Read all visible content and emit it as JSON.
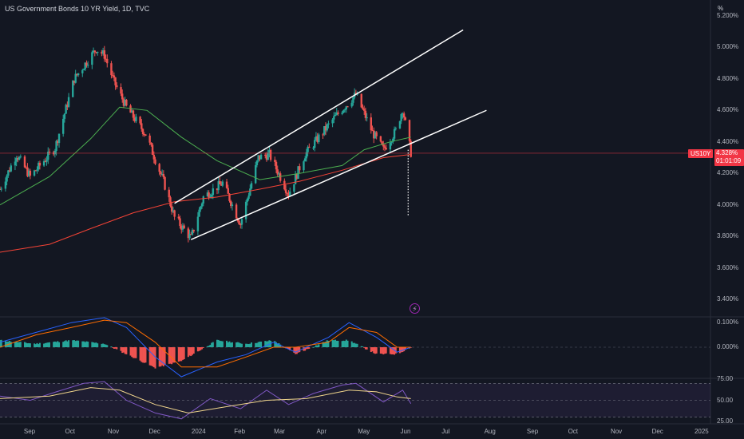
{
  "header": {
    "title": "US Government Bonds 10 YR Yield, 1D, TVC",
    "unit_label": "%"
  },
  "price_axis": {
    "labels": [
      "5.200%",
      "5.000%",
      "4.800%",
      "4.600%",
      "4.400%",
      "4.200%",
      "4.000%",
      "3.800%",
      "3.600%",
      "3.400%"
    ]
  },
  "macd_axis": {
    "labels": [
      "0.100%",
      "0.000%"
    ]
  },
  "rsi_axis": {
    "labels": [
      "75.00",
      "50.00",
      "25.00"
    ]
  },
  "time_axis": {
    "labels": [
      "Sep",
      "Oct",
      "Nov",
      "Dec",
      "2024",
      "Feb",
      "Mar",
      "Apr",
      "May",
      "Jun",
      "Jul",
      "Aug",
      "Sep",
      "Oct",
      "Nov",
      "Dec",
      "2025"
    ]
  },
  "last_price": {
    "ticker": "US10Y",
    "value": "4.328%",
    "countdown": "01:01:09"
  },
  "event_icon": "lightning-icon",
  "colors": {
    "background": "#131722",
    "up": "#26a69a",
    "down": "#ef5350",
    "ma_fast": "#4caf50",
    "ma_slow": "#f44336",
    "trendline": "#ffffff",
    "macd": "#2962ff",
    "signal": "#ff6d00",
    "rsi": "#7e57c2",
    "rsi_ma": "#f0d58c"
  },
  "chart_data": [
    {
      "type": "candlestick",
      "title": "US Government Bonds 10 YR Yield, 1D, TVC",
      "xlabel": "",
      "ylabel": "",
      "ylim": [
        3.3,
        5.3
      ],
      "x_range": [
        "2023-08-10",
        "2025-01-08"
      ],
      "x_ticks": [
        "Sep",
        "Oct",
        "Nov",
        "Dec",
        "2024",
        "Feb",
        "Mar",
        "Apr",
        "May",
        "Jun",
        "Jul",
        "Aug",
        "Sep",
        "Oct",
        "Nov",
        "Dec",
        "2025"
      ],
      "close_path": [
        [
          "2023-08-10",
          4.1
        ],
        [
          "2023-08-22",
          4.32
        ],
        [
          "2023-09-01",
          4.18
        ],
        [
          "2023-09-19",
          4.36
        ],
        [
          "2023-10-03",
          4.8
        ],
        [
          "2023-10-19",
          4.99
        ],
        [
          "2023-10-25",
          4.95
        ],
        [
          "2023-11-01",
          4.78
        ],
        [
          "2023-11-10",
          4.62
        ],
        [
          "2023-11-24",
          4.45
        ],
        [
          "2023-12-07",
          4.15
        ],
        [
          "2023-12-15",
          3.92
        ],
        [
          "2023-12-27",
          3.79
        ],
        [
          "2024-01-05",
          4.05
        ],
        [
          "2024-01-19",
          4.14
        ],
        [
          "2024-02-01",
          3.88
        ],
        [
          "2024-02-14",
          4.3
        ],
        [
          "2024-02-22",
          4.32
        ],
        [
          "2024-03-07",
          4.07
        ],
        [
          "2024-03-19",
          4.32
        ],
        [
          "2024-04-10",
          4.56
        ],
        [
          "2024-04-25",
          4.7
        ],
        [
          "2024-05-07",
          4.46
        ],
        [
          "2024-05-15",
          4.35
        ],
        [
          "2024-05-24",
          4.47
        ],
        [
          "2024-05-29",
          4.61
        ],
        [
          "2024-06-04",
          4.33
        ]
      ],
      "series": [
        {
          "name": "",
          "kind": "moving-average",
          "color": "#4caf50",
          "values": [
            [
              "2023-08-10",
              4.0
            ],
            [
              "2023-09-15",
              4.18
            ],
            [
              "2023-10-15",
              4.42
            ],
            [
              "2023-11-05",
              4.62
            ],
            [
              "2023-11-25",
              4.6
            ],
            [
              "2023-12-20",
              4.43
            ],
            [
              "2024-01-15",
              4.28
            ],
            [
              "2024-02-15",
              4.16
            ],
            [
              "2024-03-15",
              4.2
            ],
            [
              "2024-04-15",
              4.25
            ],
            [
              "2024-05-01",
              4.35
            ],
            [
              "2024-05-20",
              4.4
            ],
            [
              "2024-06-04",
              4.43
            ]
          ]
        },
        {
          "name": "",
          "kind": "moving-average",
          "color": "#f44336",
          "values": [
            [
              "2023-08-10",
              3.7
            ],
            [
              "2023-09-15",
              3.75
            ],
            [
              "2023-10-15",
              3.85
            ],
            [
              "2023-11-15",
              3.95
            ],
            [
              "2023-12-15",
              4.02
            ],
            [
              "2024-01-15",
              4.05
            ],
            [
              "2024-02-15",
              4.1
            ],
            [
              "2024-03-15",
              4.15
            ],
            [
              "2024-04-15",
              4.22
            ],
            [
              "2024-05-15",
              4.3
            ],
            [
              "2024-06-04",
              4.32
            ]
          ]
        }
      ],
      "trendlines": [
        {
          "from": [
            "2023-12-27",
            3.78
          ],
          "to": [
            "2024-07-29",
            4.6
          ]
        },
        {
          "from": [
            "2023-12-15",
            4.01
          ],
          "to": [
            "2024-07-12",
            5.11
          ]
        }
      ],
      "projection": {
        "from": [
          "2024-06-02",
          4.35
        ],
        "to": [
          "2024-06-02",
          3.93
        ],
        "style": "dotted"
      },
      "last_value": 4.328
    },
    {
      "type": "histogram",
      "title": "",
      "ylim": [
        -0.12,
        0.12
      ],
      "x_range": [
        "2023-08-10",
        "2024-06-04"
      ],
      "series": [
        {
          "name": "",
          "kind": "macd",
          "color": "#2962ff",
          "values": [
            [
              "2023-08-10",
              0.02
            ],
            [
              "2023-09-05",
              0.06
            ],
            [
              "2023-10-01",
              0.1
            ],
            [
              "2023-10-25",
              0.12
            ],
            [
              "2023-11-10",
              0.08
            ],
            [
              "2023-12-01",
              -0.04
            ],
            [
              "2023-12-20",
              -0.12
            ],
            [
              "2024-01-15",
              -0.06
            ],
            [
              "2024-02-05",
              -0.03
            ],
            [
              "2024-02-25",
              0.02
            ],
            [
              "2024-03-12",
              -0.02
            ],
            [
              "2024-04-05",
              0.04
            ],
            [
              "2024-04-20",
              0.1
            ],
            [
              "2024-05-10",
              0.04
            ],
            [
              "2024-05-25",
              -0.02
            ],
            [
              "2024-06-04",
              0.0
            ]
          ]
        },
        {
          "name": "",
          "kind": "signal",
          "color": "#ff6d00",
          "values": [
            [
              "2023-08-10",
              0.0
            ],
            [
              "2023-09-05",
              0.05
            ],
            [
              "2023-10-01",
              0.08
            ],
            [
              "2023-10-25",
              0.11
            ],
            [
              "2023-11-10",
              0.1
            ],
            [
              "2023-12-01",
              0.02
            ],
            [
              "2023-12-20",
              -0.08
            ],
            [
              "2024-01-15",
              -0.08
            ],
            [
              "2024-02-05",
              -0.04
            ],
            [
              "2024-02-25",
              0.0
            ],
            [
              "2024-03-12",
              0.0
            ],
            [
              "2024-04-05",
              0.02
            ],
            [
              "2024-04-20",
              0.08
            ],
            [
              "2024-05-10",
              0.06
            ],
            [
              "2024-05-25",
              0.0
            ],
            [
              "2024-06-04",
              0.0
            ]
          ]
        }
      ]
    },
    {
      "type": "line",
      "title": "",
      "ylim": [
        25,
        75
      ],
      "x_range": [
        "2023-08-10",
        "2024-06-04"
      ],
      "bands": [
        30,
        50,
        70
      ],
      "series": [
        {
          "name": "",
          "kind": "rsi",
          "color": "#7e57c2",
          "values": [
            [
              "2023-08-10",
              55
            ],
            [
              "2023-09-01",
              50
            ],
            [
              "2023-09-20",
              60
            ],
            [
              "2023-10-10",
              70
            ],
            [
              "2023-10-25",
              72
            ],
            [
              "2023-11-10",
              50
            ],
            [
              "2023-12-01",
              35
            ],
            [
              "2023-12-20",
              28
            ],
            [
              "2024-01-10",
              52
            ],
            [
              "2024-02-01",
              40
            ],
            [
              "2024-02-20",
              62
            ],
            [
              "2024-03-07",
              45
            ],
            [
              "2024-03-25",
              58
            ],
            [
              "2024-04-15",
              68
            ],
            [
              "2024-04-25",
              70
            ],
            [
              "2024-05-15",
              48
            ],
            [
              "2024-05-29",
              62
            ],
            [
              "2024-06-04",
              46
            ]
          ]
        },
        {
          "name": "",
          "kind": "rsi-ma",
          "color": "#f0d58c",
          "values": [
            [
              "2023-08-10",
              52
            ],
            [
              "2023-09-15",
              55
            ],
            [
              "2023-10-15",
              65
            ],
            [
              "2023-11-05",
              62
            ],
            [
              "2023-12-01",
              45
            ],
            [
              "2023-12-25",
              35
            ],
            [
              "2024-01-20",
              42
            ],
            [
              "2024-02-20",
              50
            ],
            [
              "2024-03-20",
              52
            ],
            [
              "2024-04-20",
              62
            ],
            [
              "2024-05-10",
              60
            ],
            [
              "2024-05-25",
              54
            ],
            [
              "2024-06-04",
              52
            ]
          ]
        }
      ]
    }
  ]
}
